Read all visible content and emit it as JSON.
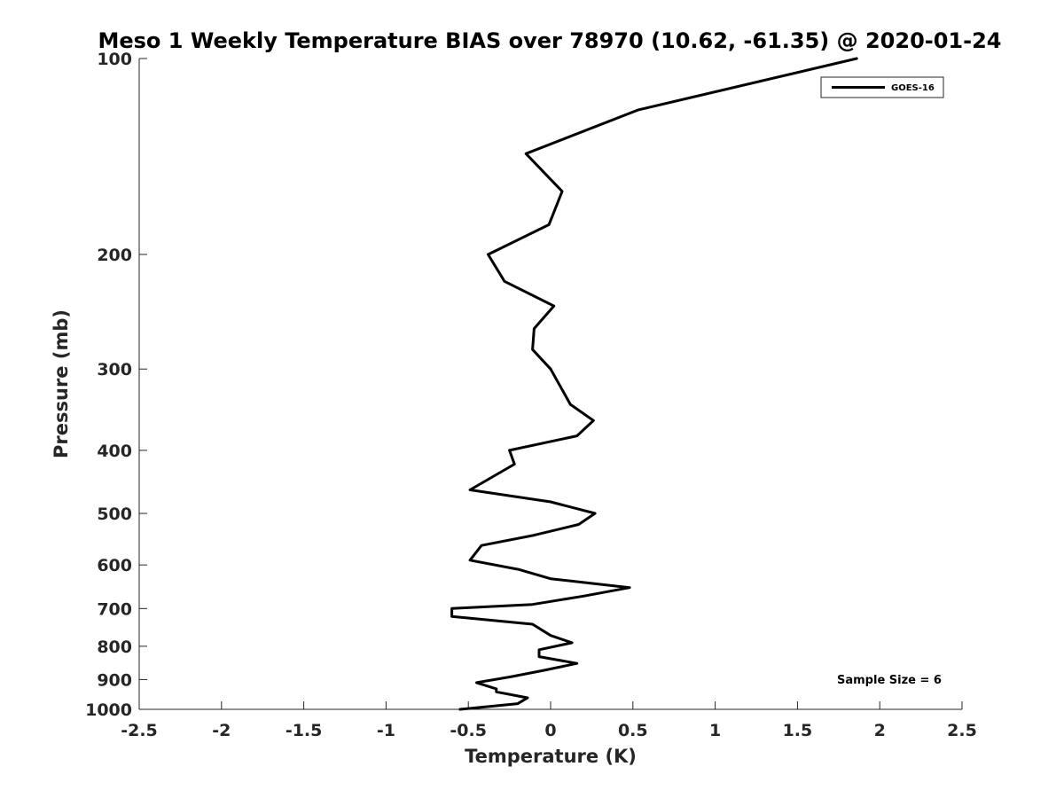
{
  "chart_data": {
    "type": "line",
    "title": "Meso 1 Weekly Temperature BIAS over 78970 (10.62, -61.35) @ 2020-01-24",
    "xlabel": "Temperature (K)",
    "ylabel": "Pressure (mb)",
    "xlim": [
      -2.5,
      2.5
    ],
    "ylim": [
      100,
      1000
    ],
    "y_scale": "log",
    "y_reversed": true,
    "x_ticks": [
      -2.5,
      -2,
      -1.5,
      -1,
      -0.5,
      0,
      0.5,
      1,
      1.5,
      2,
      2.5
    ],
    "x_tick_labels": [
      "-2.5",
      "-2",
      "-1.5",
      "-1",
      "-0.5",
      "0",
      "0.5",
      "1",
      "1.5",
      "2",
      "2.5"
    ],
    "y_ticks": [
      100,
      200,
      300,
      400,
      500,
      600,
      700,
      800,
      900,
      1000
    ],
    "y_tick_labels": [
      "100",
      "200",
      "300",
      "400",
      "500",
      "600",
      "700",
      "800",
      "900",
      "1000"
    ],
    "grid": false,
    "legend": {
      "position": "top-right",
      "entries": [
        "GOES-16"
      ]
    },
    "annotation": "Sample Size = 6",
    "series": [
      {
        "name": "GOES-16",
        "color": "#000000",
        "points": [
          {
            "x": 1.86,
            "y": 100
          },
          {
            "x": 0.53,
            "y": 120
          },
          {
            "x": -0.15,
            "y": 140
          },
          {
            "x": 0.07,
            "y": 160
          },
          {
            "x": -0.01,
            "y": 180
          },
          {
            "x": -0.38,
            "y": 200
          },
          {
            "x": -0.28,
            "y": 220
          },
          {
            "x": 0.02,
            "y": 240
          },
          {
            "x": -0.1,
            "y": 260
          },
          {
            "x": -0.11,
            "y": 280
          },
          {
            "x": 0.0,
            "y": 300
          },
          {
            "x": 0.12,
            "y": 340
          },
          {
            "x": 0.26,
            "y": 360
          },
          {
            "x": 0.16,
            "y": 380
          },
          {
            "x": -0.25,
            "y": 400
          },
          {
            "x": -0.22,
            "y": 420
          },
          {
            "x": -0.49,
            "y": 460
          },
          {
            "x": 0.0,
            "y": 480
          },
          {
            "x": 0.27,
            "y": 500
          },
          {
            "x": 0.17,
            "y": 520
          },
          {
            "x": -0.1,
            "y": 540
          },
          {
            "x": -0.42,
            "y": 560
          },
          {
            "x": -0.49,
            "y": 590
          },
          {
            "x": -0.19,
            "y": 610
          },
          {
            "x": 0.0,
            "y": 630
          },
          {
            "x": 0.48,
            "y": 650
          },
          {
            "x": 0.2,
            "y": 670
          },
          {
            "x": -0.11,
            "y": 690
          },
          {
            "x": -0.6,
            "y": 700
          },
          {
            "x": -0.6,
            "y": 720
          },
          {
            "x": -0.11,
            "y": 740
          },
          {
            "x": 0.0,
            "y": 770
          },
          {
            "x": 0.13,
            "y": 790
          },
          {
            "x": -0.07,
            "y": 810
          },
          {
            "x": -0.07,
            "y": 830
          },
          {
            "x": 0.16,
            "y": 850
          },
          {
            "x": -0.03,
            "y": 870
          },
          {
            "x": -0.23,
            "y": 890
          },
          {
            "x": -0.45,
            "y": 910
          },
          {
            "x": -0.33,
            "y": 930
          },
          {
            "x": -0.33,
            "y": 940
          },
          {
            "x": -0.14,
            "y": 960
          },
          {
            "x": -0.2,
            "y": 980
          },
          {
            "x": -0.55,
            "y": 1000
          }
        ]
      }
    ]
  }
}
